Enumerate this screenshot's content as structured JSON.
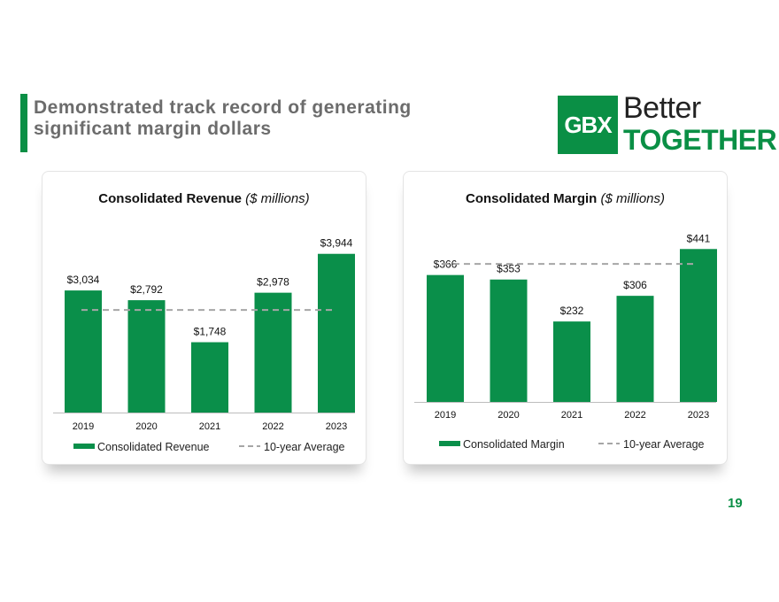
{
  "slide": {
    "title": "Demonstrated track record of generating significant margin dollars",
    "page_number": "19"
  },
  "logo": {
    "mark": "GBX",
    "line1": "Better",
    "line2": "TOGETHER"
  },
  "colors": {
    "brand_green": "#0a8f45",
    "bar_green": "#0a8f4a",
    "average_line": "#a6a6a6",
    "title_gray": "#6c6c6c"
  },
  "charts": {
    "revenue": {
      "title_bold": "Consolidated Revenue",
      "title_italic": "($ millions)"
    },
    "margin": {
      "title_bold": "Consolidated Margin",
      "title_italic": "($ millions)"
    }
  },
  "chart_data": [
    {
      "id": "revenue",
      "type": "bar",
      "title": "Consolidated Revenue ($ millions)",
      "categories": [
        "2019",
        "2020",
        "2021",
        "2022",
        "2023"
      ],
      "series": [
        {
          "name": "Consolidated Revenue",
          "values": [
            3034,
            2792,
            1748,
            2978,
            3944
          ],
          "labels": [
            "$3,034",
            "$2,792",
            "$1,748",
            "$2,978",
            "$3,944"
          ]
        }
      ],
      "average": {
        "name": "10-year Average",
        "value": 2550
      },
      "ylim": [
        0,
        4400
      ],
      "legend": [
        "Consolidated Revenue",
        "10-year Average"
      ],
      "legend_position": "bottom"
    },
    {
      "id": "margin",
      "type": "bar",
      "title": "Consolidated Margin ($ millions)",
      "categories": [
        "2019",
        "2020",
        "2021",
        "2022",
        "2023"
      ],
      "series": [
        {
          "name": "Consolidated Margin",
          "values": [
            366,
            353,
            232,
            306,
            441
          ],
          "labels": [
            "$366",
            "$353",
            "$232",
            "$306",
            "$441"
          ]
        }
      ],
      "average": {
        "name": "10-year Average",
        "value": 398
      },
      "ylim": [
        0,
        480
      ],
      "legend": [
        "Consolidated Margin",
        "10-year Average"
      ],
      "legend_position": "bottom"
    }
  ]
}
